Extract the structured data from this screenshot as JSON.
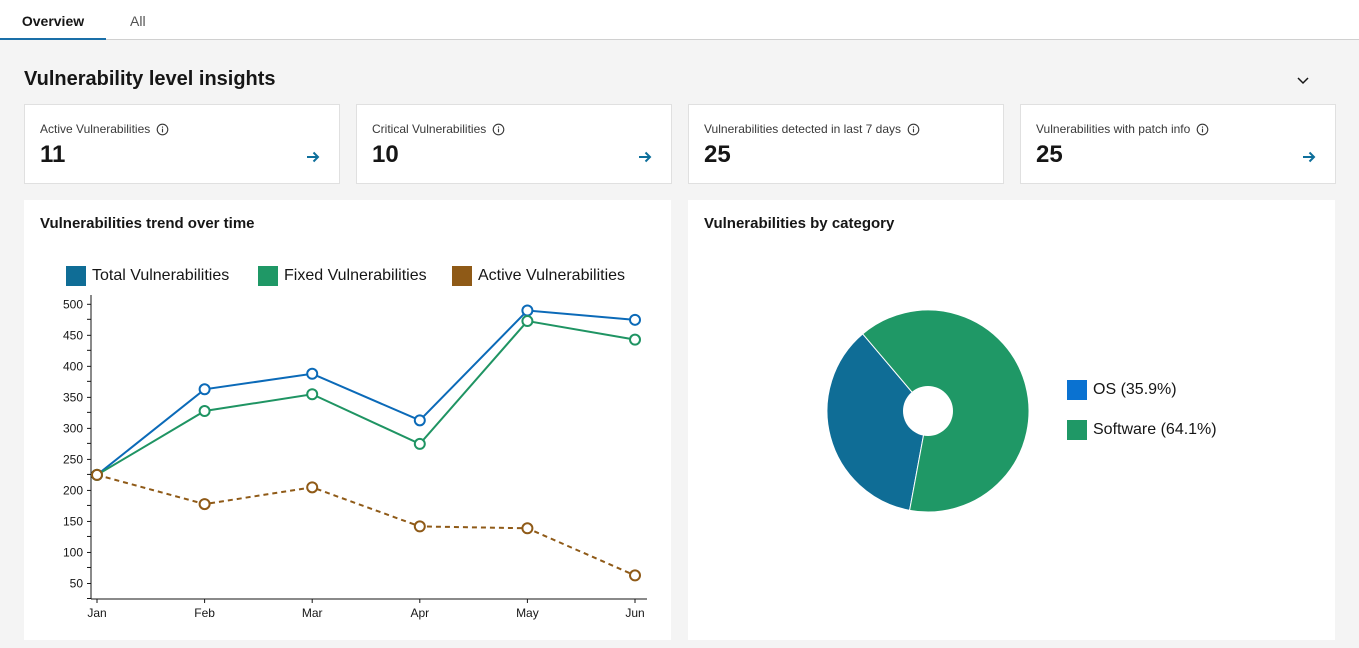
{
  "tabs": [
    {
      "label": "Overview",
      "active": true
    },
    {
      "label": "All",
      "active": false
    }
  ],
  "section": {
    "title": "Vulnerability level insights"
  },
  "kpis": [
    {
      "label": "Active Vulnerabilities",
      "value": "11"
    },
    {
      "label": "Critical Vulnerabilities",
      "value": "10"
    },
    {
      "label": "Vulnerabilities detected in last 7 days",
      "value": "25"
    },
    {
      "label": "Vulnerabilities with patch info",
      "value": "25"
    }
  ],
  "icons": {
    "info": "info-icon",
    "arrow": "arrow-right-icon",
    "collapse": "chevron-down-icon"
  },
  "colors": {
    "total": "#0b6ab8",
    "fixed": "#1f9463",
    "active": "#8f5a17",
    "os": "#0f6d96",
    "software": "#1f9866",
    "accent": "#0e6f9b"
  },
  "trend_panel": {
    "title": "Vulnerabilities trend over time"
  },
  "category_panel": {
    "title": "Vulnerabilities by category"
  },
  "chart_data": [
    {
      "type": "line",
      "title": "Vulnerabilities trend over time",
      "xlabel": "",
      "ylabel": "",
      "categories": [
        "Jan",
        "Feb",
        "Mar",
        "Apr",
        "May",
        "Jun"
      ],
      "yticks": [
        50,
        100,
        150,
        200,
        250,
        300,
        350,
        400,
        450,
        500
      ],
      "ylim": [
        25,
        515
      ],
      "grid": false,
      "legend": "top",
      "series": [
        {
          "name": "Total Vulnerabilities",
          "values": [
            225,
            363,
            388,
            313,
            490,
            475
          ],
          "style": "solid",
          "color": "#0b6ab8"
        },
        {
          "name": "Fixed Vulnerabilities",
          "values": [
            225,
            328,
            355,
            275,
            473,
            443
          ],
          "style": "solid",
          "color": "#1f9463"
        },
        {
          "name": "Active Vulnerabilities",
          "values": [
            225,
            178,
            205,
            142,
            139,
            63
          ],
          "style": "dashed",
          "color": "#8f5a17"
        }
      ]
    },
    {
      "type": "pie",
      "title": "Vulnerabilities by category",
      "legend": "right",
      "slices": [
        {
          "label": "OS (35.9%)",
          "name": "OS",
          "value": 35.9,
          "color": "#0f6d96"
        },
        {
          "label": "Software (64.1%)",
          "name": "Software",
          "value": 64.1,
          "color": "#1f9866"
        }
      ]
    }
  ]
}
